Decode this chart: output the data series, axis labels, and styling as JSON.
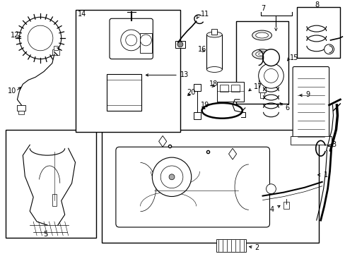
{
  "bg_color": "#ffffff",
  "fig_width": 4.89,
  "fig_height": 3.6,
  "dpi": 100,
  "lc": "#000000",
  "tc": "#000000",
  "fs": 7.0,
  "lw": 0.8
}
